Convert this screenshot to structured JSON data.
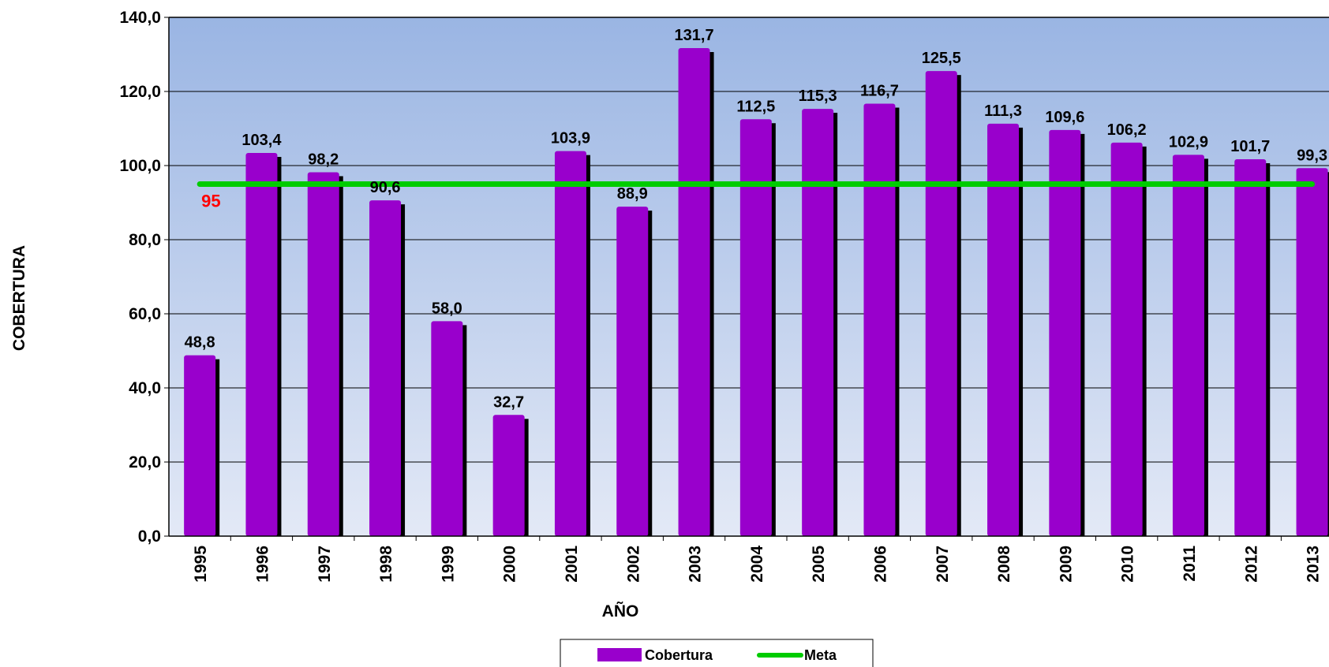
{
  "chart_data": {
    "type": "bar",
    "title": "",
    "xlabel": "AÑO",
    "ylabel": "COBERTURA",
    "ylim": [
      0,
      140
    ],
    "yticks": [
      "0,0",
      "20,0",
      "40,0",
      "60,0",
      "80,0",
      "100,0",
      "120,0",
      "140,0"
    ],
    "ytick_values": [
      0,
      20,
      40,
      60,
      80,
      100,
      120,
      140
    ],
    "categories": [
      "1995",
      "1996",
      "1997",
      "1998",
      "1999",
      "2000",
      "2001",
      "2002",
      "2003",
      "2004",
      "2005",
      "2006",
      "2007",
      "2008",
      "2009",
      "2010",
      "2011",
      "2012",
      "2013"
    ],
    "series": [
      {
        "name": "Cobertura",
        "kind": "bar",
        "color": "#9900cc",
        "values": [
          48.8,
          103.4,
          98.2,
          90.6,
          58.0,
          32.7,
          103.9,
          88.9,
          131.7,
          112.5,
          115.3,
          116.7,
          125.5,
          111.3,
          109.6,
          106.2,
          102.9,
          101.7,
          99.3
        ],
        "labels": [
          "48,8",
          "103,4",
          "98,2",
          "90,6",
          "58,0",
          "32,7",
          "103,9",
          "88,9",
          "131,7",
          "112,5",
          "115,3",
          "116,7",
          "125,5",
          "111,3",
          "109,6",
          "106,2",
          "102,9",
          "101,7",
          "99,3"
        ]
      },
      {
        "name": "Meta",
        "kind": "line",
        "color": "#00cc00",
        "value": 95,
        "label": "95",
        "label_color": "#ff0000"
      }
    ],
    "grid": true,
    "legend_position": "bottom",
    "background_gradient": [
      "#9ab5e3",
      "#e3e9f6"
    ]
  }
}
